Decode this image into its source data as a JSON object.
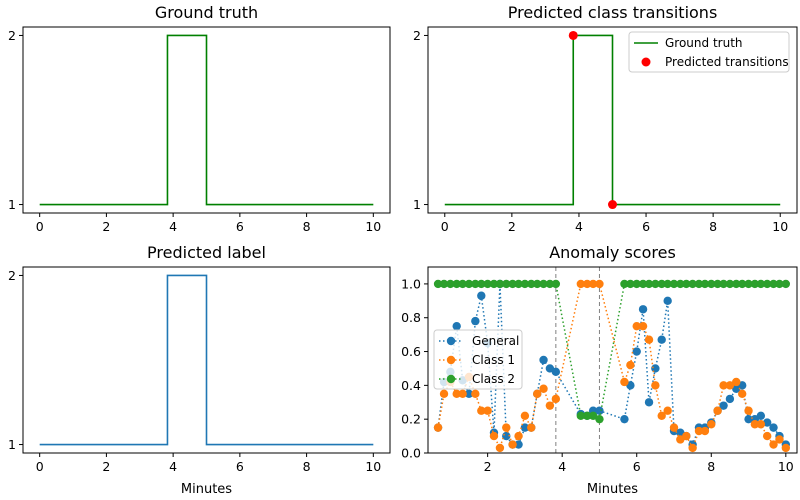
{
  "chart_data": [
    {
      "id": "ground_truth",
      "type": "line",
      "title": "Ground truth",
      "xlabel": "",
      "ylabel": "",
      "xlim": [
        -0.5,
        10.5
      ],
      "ylim": [
        0.95,
        2.05
      ],
      "xticks": [
        0,
        2,
        4,
        6,
        8,
        10
      ],
      "yticks": [
        1,
        2
      ],
      "series": [
        {
          "style": "step",
          "color": "#008000",
          "x": [
            0,
            3.83,
            3.83,
            5.0,
            5.0,
            10.0
          ],
          "y": [
            1,
            1,
            2,
            2,
            1,
            1
          ]
        }
      ]
    },
    {
      "id": "transitions",
      "type": "line",
      "title": "Predicted class transitions",
      "xlabel": "",
      "ylabel": "",
      "xlim": [
        -0.5,
        10.5
      ],
      "ylim": [
        0.95,
        2.05
      ],
      "xticks": [
        0,
        2,
        4,
        6,
        8,
        10
      ],
      "yticks": [
        1,
        2
      ],
      "legend_position": "top-right",
      "series": [
        {
          "name": "Ground truth",
          "style": "step",
          "color": "#008000",
          "x": [
            0,
            3.83,
            3.83,
            5.0,
            5.0,
            10.0
          ],
          "y": [
            1,
            1,
            2,
            2,
            1,
            1
          ]
        },
        {
          "name": "Predicted transitions",
          "style": "scatter",
          "color": "#ff0000",
          "x": [
            3.83,
            5.0
          ],
          "y": [
            2,
            1
          ]
        }
      ]
    },
    {
      "id": "predicted_label",
      "type": "line",
      "title": "Predicted label",
      "xlabel": "Minutes",
      "ylabel": "",
      "xlim": [
        -0.5,
        10.5
      ],
      "ylim": [
        0.95,
        2.05
      ],
      "xticks": [
        0,
        2,
        4,
        6,
        8,
        10
      ],
      "yticks": [
        1,
        2
      ],
      "series": [
        {
          "style": "step",
          "color": "#1f77b4",
          "x": [
            0,
            3.83,
            3.83,
            5.0,
            5.0,
            10.0
          ],
          "y": [
            1,
            1,
            2,
            2,
            1,
            1
          ]
        }
      ]
    },
    {
      "id": "anomaly_scores",
      "type": "line",
      "title": "Anomaly scores",
      "xlabel": "Minutes",
      "ylabel": "",
      "xlim": [
        0.4,
        10.3
      ],
      "ylim": [
        0.0,
        1.1
      ],
      "xticks": [
        2,
        4,
        6,
        8,
        10
      ],
      "yticks": [
        0.0,
        0.2,
        0.4,
        0.6,
        0.8,
        1.0
      ],
      "ytick_labels": [
        "0.0",
        "0.2",
        "0.4",
        "0.6",
        "0.8",
        "1.0"
      ],
      "legend_position": "center-left",
      "vlines": [
        3.83,
        5.0
      ],
      "series": [
        {
          "name": "General",
          "color": "#1f77b4",
          "x": [
            0.67,
            0.83,
            1.0,
            1.17,
            1.33,
            1.5,
            1.67,
            1.83,
            2.0,
            2.17,
            2.33,
            2.5,
            2.67,
            2.83,
            3.0,
            3.17,
            3.33,
            3.5,
            3.67,
            3.83,
            4.5,
            4.67,
            4.83,
            5.0,
            5.67,
            5.83,
            6.0,
            6.17,
            6.33,
            6.5,
            6.67,
            6.83,
            7.0,
            7.17,
            7.33,
            7.5,
            7.67,
            7.83,
            8.0,
            8.17,
            8.33,
            8.5,
            8.67,
            8.83,
            9.0,
            9.17,
            9.33,
            9.5,
            9.67,
            9.83,
            10.0
          ],
          "y": [
            0.15,
            0.42,
            0.48,
            0.75,
            0.43,
            0.35,
            0.78,
            0.93,
            0.65,
            0.12,
            1.0,
            0.1,
            0.05,
            0.05,
            0.15,
            0.15,
            0.35,
            0.55,
            0.5,
            0.48,
            0.23,
            0.22,
            0.25,
            0.25,
            0.2,
            0.4,
            0.6,
            0.85,
            0.3,
            0.5,
            0.67,
            0.9,
            0.13,
            0.12,
            0.1,
            0.05,
            0.15,
            0.15,
            0.18,
            0.25,
            0.28,
            0.32,
            0.38,
            0.4,
            0.2,
            0.2,
            0.22,
            0.18,
            0.15,
            0.1,
            0.05
          ]
        },
        {
          "name": "Class 1",
          "color": "#ff7f0e",
          "x": [
            0.67,
            0.83,
            1.0,
            1.17,
            1.33,
            1.5,
            1.67,
            1.83,
            2.0,
            2.17,
            2.33,
            2.5,
            2.67,
            2.83,
            3.0,
            3.17,
            3.33,
            3.5,
            3.67,
            3.83,
            4.5,
            4.67,
            4.83,
            5.0,
            5.67,
            5.83,
            6.0,
            6.17,
            6.33,
            6.5,
            6.67,
            6.83,
            7.0,
            7.17,
            7.33,
            7.5,
            7.67,
            7.83,
            8.0,
            8.17,
            8.33,
            8.5,
            8.67,
            8.83,
            9.0,
            9.17,
            9.33,
            9.5,
            9.67,
            9.83,
            10.0
          ],
          "y": [
            0.15,
            0.35,
            0.42,
            0.35,
            0.35,
            0.45,
            0.35,
            0.25,
            0.25,
            0.1,
            0.03,
            0.15,
            0.05,
            0.1,
            0.22,
            0.15,
            0.35,
            0.38,
            0.28,
            0.32,
            1.0,
            1.0,
            1.0,
            1.0,
            0.42,
            0.52,
            0.75,
            0.75,
            0.67,
            0.4,
            0.22,
            0.25,
            0.15,
            0.08,
            0.1,
            0.03,
            0.13,
            0.13,
            0.17,
            0.25,
            0.4,
            0.4,
            0.42,
            0.35,
            0.25,
            0.17,
            0.17,
            0.1,
            0.05,
            0.08,
            0.03
          ]
        },
        {
          "name": "Class 2",
          "color": "#2ca02c",
          "x": [
            0.67,
            0.83,
            1.0,
            1.17,
            1.33,
            1.5,
            1.67,
            1.83,
            2.0,
            2.17,
            2.33,
            2.5,
            2.67,
            2.83,
            3.0,
            3.17,
            3.33,
            3.5,
            3.67,
            3.83,
            4.5,
            4.67,
            4.83,
            5.0,
            5.67,
            5.83,
            6.0,
            6.17,
            6.33,
            6.5,
            6.67,
            6.83,
            7.0,
            7.17,
            7.33,
            7.5,
            7.67,
            7.83,
            8.0,
            8.17,
            8.33,
            8.5,
            8.67,
            8.83,
            9.0,
            9.17,
            9.33,
            9.5,
            9.67,
            9.83,
            10.0
          ],
          "y": [
            1,
            1,
            1,
            1,
            1,
            1,
            1,
            1,
            1,
            1,
            1,
            1,
            1,
            1,
            1,
            1,
            1,
            1,
            1,
            1,
            0.22,
            0.22,
            0.22,
            0.2,
            1,
            1,
            1,
            1,
            1,
            1,
            1,
            1,
            1,
            1,
            1,
            1,
            1,
            1,
            1,
            1,
            1,
            1,
            1,
            1,
            1,
            1,
            1,
            1,
            1,
            1,
            1
          ]
        }
      ]
    }
  ]
}
